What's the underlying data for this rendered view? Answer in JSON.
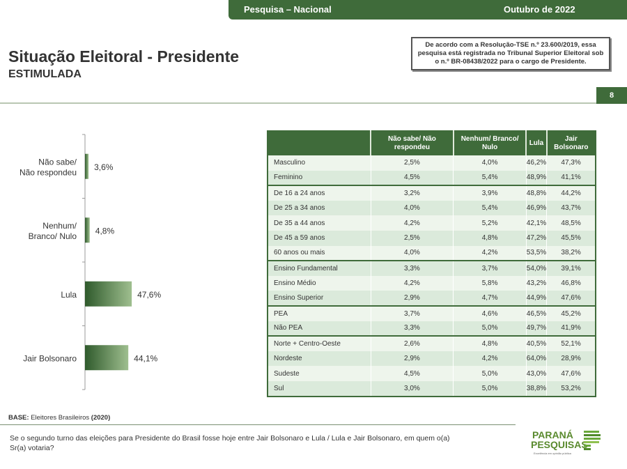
{
  "header": {
    "left": "Pesquisa – Nacional",
    "right": "Outubro de 2022"
  },
  "title": "Situação Eleitoral - Presidente",
  "subtitle": "ESTIMULADA",
  "tse_notice": "De acordo com a Resolução-TSE n.º 23.600/2019, essa pesquisa está registrada no Tribunal Superior Eleitoral sob o n.º BR-08438/2022 para o cargo de Presidente.",
  "page_number": "8",
  "colors": {
    "brand_green": "#3f6b3a",
    "bar_dark": "#2f5a2c",
    "bar_light": "#9fbf8f"
  },
  "chart_data": {
    "type": "bar",
    "orientation": "horizontal",
    "categories": [
      "Não sabe/ Não respondeu",
      "Nenhum/ Branco/ Nulo",
      "Lula",
      "Jair Bolsonaro"
    ],
    "values": [
      3.6,
      4.8,
      47.6,
      44.1
    ],
    "labels": [
      "3,6%",
      "4,8%",
      "47,6%",
      "44,1%"
    ],
    "unit": "%"
  },
  "table": {
    "columns": [
      "",
      "Não sabe/ Não respondeu",
      "Nenhum/ Branco/ Nulo",
      "Lula",
      "Jair Bolsonaro"
    ],
    "rows": [
      {
        "label": "Masculino",
        "values": [
          "2,5%",
          "4,0%",
          "46,2%",
          "47,3%"
        ],
        "group_start": true
      },
      {
        "label": "Feminino",
        "values": [
          "4,5%",
          "5,4%",
          "48,9%",
          "41,1%"
        ]
      },
      {
        "label": "De 16 a 24 anos",
        "values": [
          "3,2%",
          "3,9%",
          "48,8%",
          "44,2%"
        ],
        "group_start": true
      },
      {
        "label": "De 25 a 34 anos",
        "values": [
          "4,0%",
          "5,4%",
          "46,9%",
          "43,7%"
        ]
      },
      {
        "label": "De 35 a 44 anos",
        "values": [
          "4,2%",
          "5,2%",
          "42,1%",
          "48,5%"
        ]
      },
      {
        "label": "De 45 a 59 anos",
        "values": [
          "2,5%",
          "4,8%",
          "47,2%",
          "45,5%"
        ]
      },
      {
        "label": "60 anos ou mais",
        "values": [
          "4,0%",
          "4,2%",
          "53,5%",
          "38,2%"
        ]
      },
      {
        "label": "Ensino Fundamental",
        "values": [
          "3,3%",
          "3,7%",
          "54,0%",
          "39,1%"
        ],
        "group_start": true
      },
      {
        "label": "Ensino Médio",
        "values": [
          "4,2%",
          "5,8%",
          "43,2%",
          "46,8%"
        ]
      },
      {
        "label": "Ensino Superior",
        "values": [
          "2,9%",
          "4,7%",
          "44,9%",
          "47,6%"
        ]
      },
      {
        "label": "PEA",
        "values": [
          "3,7%",
          "4,6%",
          "46,5%",
          "45,2%"
        ],
        "group_start": true
      },
      {
        "label": "Não PEA",
        "values": [
          "3,3%",
          "5,0%",
          "49,7%",
          "41,9%"
        ]
      },
      {
        "label": "Norte + Centro-Oeste",
        "values": [
          "2,6%",
          "4,8%",
          "40,5%",
          "52,1%"
        ],
        "group_start": true
      },
      {
        "label": "Nordeste",
        "values": [
          "2,9%",
          "4,2%",
          "64,0%",
          "28,9%"
        ]
      },
      {
        "label": "Sudeste",
        "values": [
          "4,5%",
          "5,0%",
          "43,0%",
          "47,6%"
        ]
      },
      {
        "label": "Sul",
        "values": [
          "3,0%",
          "5,0%",
          "38,8%",
          "53,2%"
        ]
      }
    ]
  },
  "base": {
    "label": "BASE:",
    "text": "Eleitores Brasileiros",
    "year": "(2020)"
  },
  "question": "Se o segundo turno das eleições para Presidente do Brasil fosse hoje entre Jair Bolsonaro e Lula / Lula e Jair Bolsonaro, em quem o(a) Sr(a) votaria?",
  "logo": {
    "line1": "PARANÁ",
    "line2": "PESQUISAS",
    "tagline": "Excelência em opinião pública"
  }
}
